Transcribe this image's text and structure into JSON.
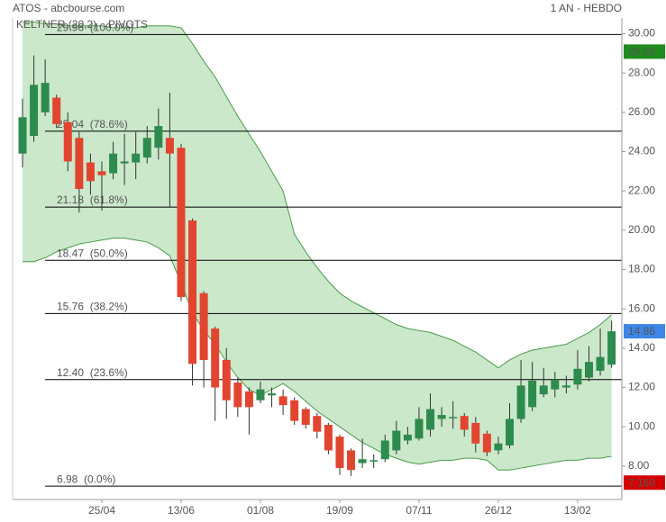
{
  "chart_data": {
    "type": "candlestick",
    "title": "ATOS - abcbourse.com",
    "subtitle": "1 AN - HEBDO",
    "categories": [
      null,
      null,
      null,
      null,
      null,
      null,
      null,
      "25/04",
      null,
      null,
      null,
      null,
      null,
      null,
      "13/06",
      null,
      null,
      null,
      null,
      null,
      null,
      "01/08",
      null,
      null,
      null,
      null,
      null,
      null,
      "19/09",
      null,
      null,
      null,
      null,
      null,
      null,
      "07/11",
      null,
      null,
      null,
      null,
      null,
      null,
      "26/12",
      null,
      null,
      null,
      null,
      null,
      null,
      "13/02",
      null,
      null,
      null
    ],
    "open": [
      23.9,
      24.8,
      26.0,
      26.75,
      25.5,
      24.7,
      23.45,
      23.0,
      22.9,
      23.4,
      23.45,
      23.7,
      24.2,
      24.7,
      24.2,
      20.5,
      16.8,
      15.0,
      13.4,
      12.25,
      11.8,
      11.35,
      11.6,
      11.55,
      11.35,
      10.9,
      10.55,
      10.1,
      9.5,
      8.8,
      8.15,
      8.25,
      8.35,
      8.8,
      9.3,
      9.4,
      9.85,
      10.4,
      10.45,
      10.55,
      10.2,
      9.65,
      8.8,
      9.05,
      10.4,
      11.0,
      11.65,
      11.9,
      12.0,
      12.15,
      12.5,
      12.85,
      13.16
    ],
    "high": [
      26.7,
      28.9,
      28.7,
      26.9,
      26.0,
      25.0,
      23.9,
      23.5,
      24.5,
      24.9,
      25.0,
      25.3,
      26.2,
      27.0,
      24.4,
      20.6,
      16.9,
      15.1,
      14.0,
      12.5,
      12.0,
      12.3,
      12.0,
      11.9,
      11.5,
      11.0,
      10.7,
      10.2,
      9.6,
      8.9,
      9.4,
      8.6,
      9.6,
      10.3,
      10.0,
      11.0,
      11.7,
      11.0,
      11.3,
      10.7,
      10.5,
      9.8,
      9.5,
      11.2,
      13.4,
      13.3,
      13.0,
      12.8,
      12.6,
      13.9,
      14.1,
      15.0,
      15.4
    ],
    "low": [
      23.2,
      24.5,
      25.8,
      25.2,
      23.0,
      20.9,
      21.8,
      21.0,
      22.6,
      22.3,
      22.6,
      23.4,
      23.6,
      21.2,
      16.4,
      12.1,
      12.0,
      10.3,
      10.4,
      10.5,
      9.6,
      11.2,
      11.0,
      10.6,
      10.1,
      9.9,
      9.4,
      8.6,
      7.55,
      7.5,
      7.9,
      7.9,
      8.2,
      8.6,
      9.1,
      9.3,
      9.5,
      10.0,
      9.9,
      9.5,
      8.7,
      8.5,
      8.6,
      8.9,
      10.2,
      10.8,
      11.5,
      11.5,
      11.7,
      11.9,
      12.3,
      12.6,
      13.0
    ],
    "close": [
      25.75,
      27.4,
      27.5,
      25.4,
      23.5,
      22.1,
      22.5,
      22.8,
      23.9,
      23.5,
      23.9,
      24.7,
      25.3,
      23.9,
      16.6,
      13.2,
      13.4,
      12.0,
      11.35,
      11.0,
      11.0,
      11.9,
      11.7,
      11.1,
      10.3,
      10.1,
      9.75,
      8.8,
      7.9,
      7.8,
      8.35,
      8.3,
      9.3,
      9.8,
      9.6,
      10.4,
      10.9,
      10.6,
      10.5,
      9.85,
      9.15,
      8.7,
      9.15,
      10.4,
      12.1,
      12.35,
      12.1,
      12.4,
      12.1,
      12.95,
      13.3,
      13.55,
      14.86
    ],
    "up_color": "#2e8b4e",
    "down_color": "#e2452f",
    "bands": {
      "name": "KELTNER (20,2)",
      "color": "#4a9a4a",
      "fill": "#a8d8a8",
      "upper": [
        30.6,
        30.6,
        30.5,
        30.5,
        30.4,
        30.4,
        30.4,
        30.4,
        30.3,
        30.3,
        30.3,
        30.4,
        30.4,
        30.4,
        30.3,
        29.5,
        28.6,
        27.8,
        26.8,
        25.8,
        24.9,
        24.0,
        23.0,
        22.0,
        19.8,
        18.9,
        18.1,
        17.4,
        16.8,
        16.4,
        16.1,
        15.8,
        15.5,
        15.2,
        15.0,
        14.9,
        14.8,
        14.6,
        14.4,
        14.1,
        13.8,
        13.4,
        13.0,
        13.4,
        13.7,
        13.9,
        14.0,
        14.1,
        14.2,
        14.5,
        14.8,
        15.2,
        15.7
      ],
      "lower": [
        18.4,
        18.4,
        18.6,
        18.9,
        19.1,
        19.3,
        19.4,
        19.5,
        19.6,
        19.6,
        19.5,
        19.4,
        19.1,
        18.7,
        17.3,
        15.8,
        14.9,
        14.2,
        13.3,
        12.5,
        11.9,
        11.6,
        11.9,
        12.2,
        11.8,
        11.3,
        10.8,
        10.4,
        10.0,
        9.6,
        9.2,
        8.9,
        8.6,
        8.4,
        8.2,
        8.1,
        8.2,
        8.3,
        8.3,
        8.4,
        8.4,
        8.3,
        7.8,
        7.8,
        7.9,
        8.0,
        8.1,
        8.2,
        8.3,
        8.3,
        8.4,
        8.4,
        8.5
      ]
    },
    "pivots_label": "PIVOTS",
    "fib_levels": [
      {
        "value": 29.96,
        "label": "29.96  (100.0%)"
      },
      {
        "value": 25.04,
        "label": "25.04  (78.6%)"
      },
      {
        "value": 21.18,
        "label": "21.18  (61.8%)"
      },
      {
        "value": 18.47,
        "label": "18.47  (50.0%)"
      },
      {
        "value": 15.76,
        "label": "15.76  (38.2%)"
      },
      {
        "value": 12.4,
        "label": "12.40  (23.6%)"
      },
      {
        "value": 6.98,
        "label": "6.98  (0.0%)"
      }
    ],
    "price_markers": [
      {
        "value": 29.09,
        "color": "#1e8c1e"
      },
      {
        "value": 14.86,
        "color": "#3d87e8"
      },
      {
        "value": 7.16,
        "label": "7.160",
        "color": "#d40000"
      }
    ],
    "ylim": [
      6.3,
      30.8
    ],
    "yticks": [
      {
        "value": 8,
        "label": "8.00"
      },
      {
        "value": 10,
        "label": "10.00"
      },
      {
        "value": 12,
        "label": "12.00"
      },
      {
        "value": 14,
        "label": "14.00"
      },
      {
        "value": 16,
        "label": "16.00"
      },
      {
        "value": 18,
        "label": "18.00"
      },
      {
        "value": 20,
        "label": "20.00"
      },
      {
        "value": 22,
        "label": "22.00"
      },
      {
        "value": 24,
        "label": "24.00"
      },
      {
        "value": 26,
        "label": "26.00"
      },
      {
        "value": 28,
        "label": "28.00"
      },
      {
        "value": 30,
        "label": "30.00"
      }
    ]
  }
}
